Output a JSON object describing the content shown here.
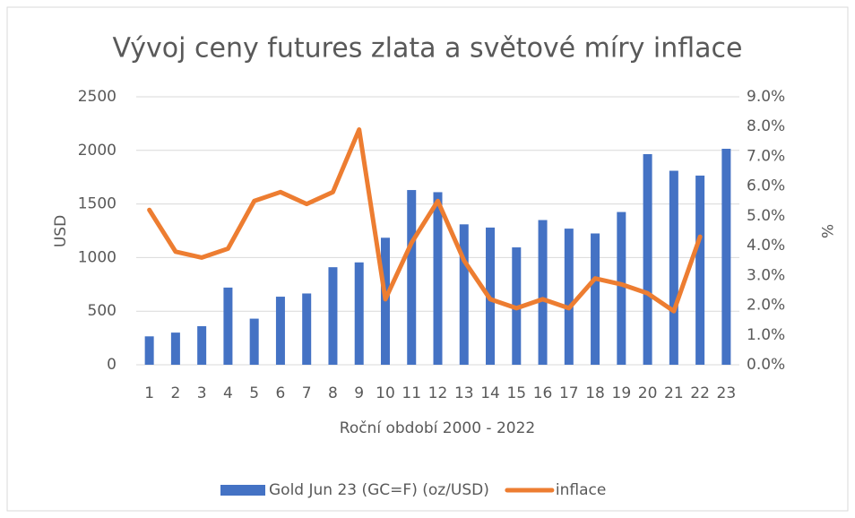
{
  "chart_data": {
    "type": "bar-line",
    "title": "Vývoj ceny futures zlata a světové míry inflace",
    "x_label": "Roční období 2000 - 2022",
    "y_label": "USD",
    "y2_label": "%",
    "categories": [
      "1",
      "2",
      "3",
      "4",
      "5",
      "6",
      "7",
      "8",
      "9",
      "10",
      "11",
      "12",
      "13",
      "14",
      "15",
      "16",
      "17",
      "18",
      "19",
      "20",
      "21",
      "22",
      "23"
    ],
    "series": [
      {
        "name": "Gold Jun 23 (GC=F) (oz/USD)",
        "type": "bar",
        "color": "#4472c4",
        "values": [
          265,
          300,
          360,
          720,
          430,
          635,
          665,
          910,
          955,
          1185,
          1630,
          1610,
          1310,
          1280,
          1095,
          1350,
          1270,
          1225,
          1425,
          1965,
          1810,
          1765,
          2015
        ]
      },
      {
        "name": "inflace",
        "type": "line",
        "axis": "y2",
        "color": "#ed7d31",
        "values": [
          5.2,
          3.8,
          3.6,
          3.9,
          5.5,
          5.8,
          5.4,
          5.8,
          7.9,
          2.2,
          4.1,
          5.5,
          3.5,
          2.2,
          1.9,
          2.2,
          1.9,
          2.9,
          2.7,
          2.4,
          1.8,
          4.3,
          null
        ]
      }
    ],
    "ylim": [
      0,
      2500
    ],
    "yticks": [
      0,
      500,
      1000,
      1500,
      2000,
      2500
    ],
    "y2lim": [
      0,
      9
    ],
    "y2ticks": [
      {
        "value": 0,
        "label": "0.0%"
      },
      {
        "value": 1,
        "label": "1.0%"
      },
      {
        "value": 2,
        "label": "2.0%"
      },
      {
        "value": 3,
        "label": "3.0%"
      },
      {
        "value": 4,
        "label": "4.0%"
      },
      {
        "value": 5,
        "label": "5.0%"
      },
      {
        "value": 6,
        "label": "6.0%"
      },
      {
        "value": 7,
        "label": "7.0%"
      },
      {
        "value": 8,
        "label": "8.0%"
      },
      {
        "value": 9,
        "label": "9.0%"
      }
    ],
    "grid": true,
    "legend": "bottom"
  }
}
